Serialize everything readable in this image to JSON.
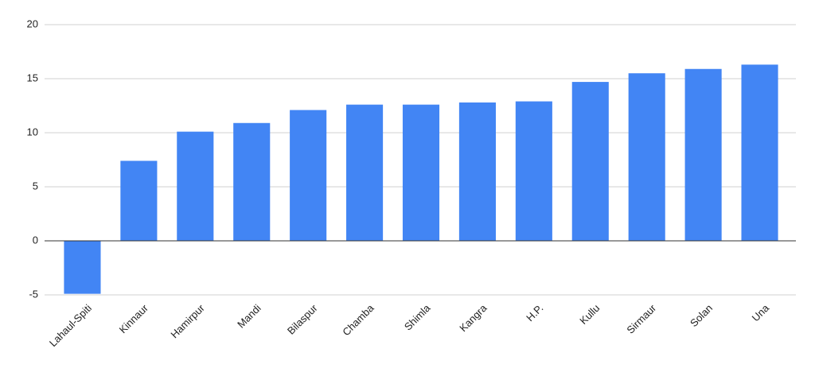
{
  "chart_data": {
    "type": "bar",
    "categories": [
      "Lahaul-Spiti",
      "Kinnaur",
      "Hamirpur",
      "Mandi",
      "Bilaspur",
      "Chamba",
      "Shimla",
      "Kangra",
      "H.P.",
      "Kullu",
      "Sirmaur",
      "Solan",
      "Una"
    ],
    "values": [
      -4.9,
      7.4,
      10.1,
      10.9,
      12.1,
      12.6,
      12.6,
      12.8,
      12.9,
      14.7,
      15.5,
      15.9,
      16.3
    ],
    "color": "#4285f4",
    "ylim": [
      -5,
      20
    ],
    "yticks": [
      -5,
      0,
      5,
      10,
      15,
      20
    ],
    "grid": true
  }
}
